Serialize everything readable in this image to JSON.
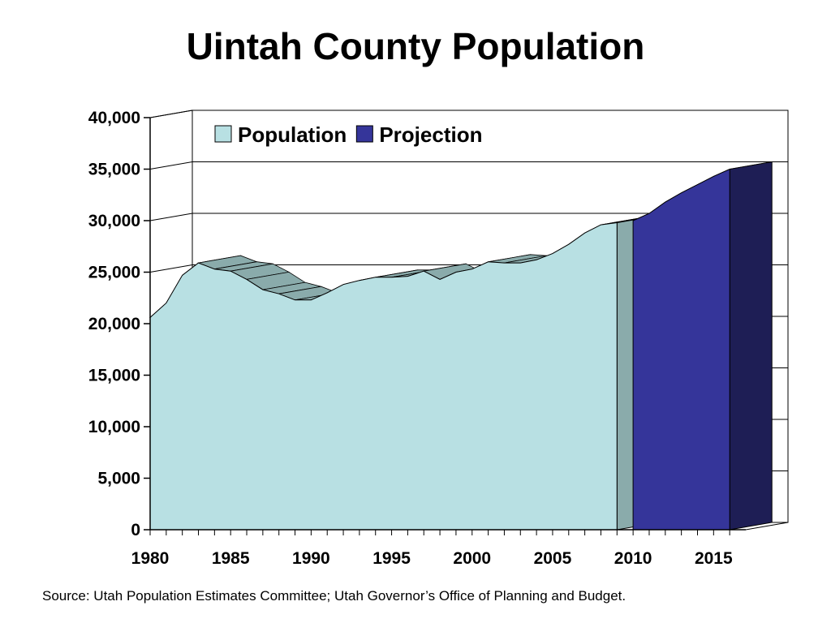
{
  "chart_data": {
    "type": "area",
    "title": "Uintah County Population",
    "xlabel": "",
    "ylabel": "",
    "xlim": [
      1980,
      2017
    ],
    "ylim": [
      0,
      40000
    ],
    "x_ticks": [
      1980,
      1985,
      1990,
      1995,
      2000,
      2005,
      2010,
      2015
    ],
    "x_tick_labels": [
      "1980",
      "1985",
      "1990",
      "1995",
      "2000",
      "2005",
      "2010",
      "2015"
    ],
    "y_ticks": [
      0,
      5000,
      10000,
      15000,
      20000,
      25000,
      30000,
      35000,
      40000
    ],
    "y_tick_labels": [
      "0",
      "5,000",
      "10,000",
      "15,000",
      "20,000",
      "25,000",
      "30,000",
      "35,000",
      "40,000"
    ],
    "grid": true,
    "legend_position": "top",
    "series": [
      {
        "name": "Population",
        "color": "#b8e0e3",
        "side_color": "#8aabab",
        "x": [
          1980,
          1981,
          1982,
          1983,
          1984,
          1985,
          1986,
          1987,
          1988,
          1989,
          1990,
          1991,
          1992,
          1993,
          1994,
          1995,
          1996,
          1997,
          1998,
          1999,
          2000,
          2001,
          2002,
          2003,
          2004,
          2005,
          2006,
          2007,
          2008,
          2009
        ],
        "values": [
          20600,
          22000,
          24700,
          25900,
          25300,
          25100,
          24300,
          23300,
          22900,
          22300,
          22300,
          23000,
          23800,
          24200,
          24500,
          24500,
          24600,
          25100,
          24300,
          25000,
          25300,
          26000,
          25900,
          25900,
          26200,
          26800,
          27700,
          28800,
          29600,
          29800
        ]
      },
      {
        "name": "Projection",
        "color": "#35359a",
        "side_color": "#1e1e55",
        "x": [
          2010,
          2011,
          2012,
          2013,
          2014,
          2015,
          2016
        ],
        "values": [
          30000,
          30700,
          31800,
          32700,
          33500,
          34300,
          35000
        ]
      }
    ]
  },
  "source_note": "Source: Utah Population Estimates Committee; Utah Governor’s Office of Planning and Budget."
}
